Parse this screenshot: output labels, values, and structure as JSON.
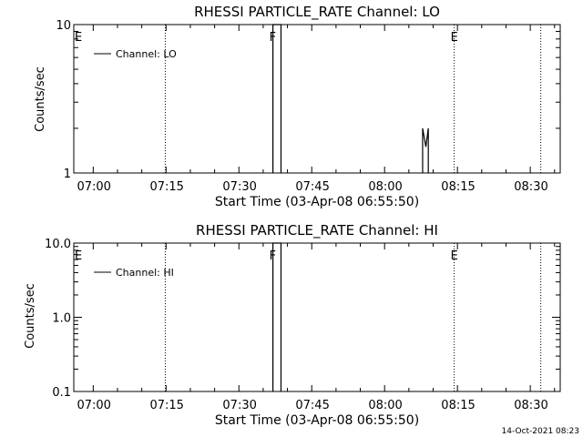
{
  "chart_data": [
    {
      "type": "line",
      "title": "RHESSI PARTICLE_RATE Channel: LO",
      "xlabel": "Start Time (03-Apr-08 06:55:50)",
      "ylabel": "Counts/sec",
      "yscale": "log",
      "ylim": [
        1,
        10
      ],
      "xlim": [
        "06:55:50",
        "08:36:00"
      ],
      "x_ticks": [
        "07:00",
        "07:15",
        "07:30",
        "07:45",
        "08:00",
        "08:15",
        "08:30"
      ],
      "y_ticks": [
        "1",
        "10"
      ],
      "legend": {
        "placement": "top-left",
        "entries": [
          "Channel: LO"
        ]
      },
      "series": [
        {
          "name": "Channel: LO",
          "color": "#000000",
          "points": [
            {
              "x": "07:36:50",
              "y": 10
            },
            {
              "x": "07:38:30",
              "y": 10
            },
            {
              "x": "08:07:40",
              "y": 2
            },
            {
              "x": "08:08:20",
              "y": 1.5
            },
            {
              "x": "08:08:50",
              "y": 2
            }
          ]
        }
      ],
      "event_lines": [
        {
          "x": "06:55:50",
          "label": "E"
        },
        {
          "x": "07:14:40",
          "label": ""
        },
        {
          "x": "07:36:50",
          "label": "F"
        },
        {
          "x": "08:14:10",
          "label": "E"
        },
        {
          "x": "08:32:00",
          "label": ""
        }
      ]
    },
    {
      "type": "line",
      "title": "RHESSI PARTICLE_RATE Channel: HI",
      "xlabel": "Start Time (03-Apr-08 06:55:50)",
      "ylabel": "Counts/sec",
      "yscale": "log",
      "ylim": [
        0.1,
        10
      ],
      "xlim": [
        "06:55:50",
        "08:36:00"
      ],
      "x_ticks": [
        "07:00",
        "07:15",
        "07:30",
        "07:45",
        "08:00",
        "08:15",
        "08:30"
      ],
      "y_ticks": [
        "0.1",
        "1.0",
        "10.0"
      ],
      "legend": {
        "placement": "top-left",
        "entries": [
          "Channel: HI"
        ]
      },
      "series": [
        {
          "name": "Channel: HI",
          "color": "#000000",
          "points": [
            {
              "x": "07:36:50",
              "y": 10
            },
            {
              "x": "07:38:30",
              "y": 10
            }
          ]
        }
      ],
      "event_lines": [
        {
          "x": "06:55:50",
          "label": "E"
        },
        {
          "x": "07:14:40",
          "label": ""
        },
        {
          "x": "07:36:50",
          "label": "F"
        },
        {
          "x": "08:14:10",
          "label": "E"
        },
        {
          "x": "08:32:00",
          "label": ""
        }
      ]
    }
  ],
  "footer": {
    "timestamp": "14-Oct-2021 08:23"
  }
}
